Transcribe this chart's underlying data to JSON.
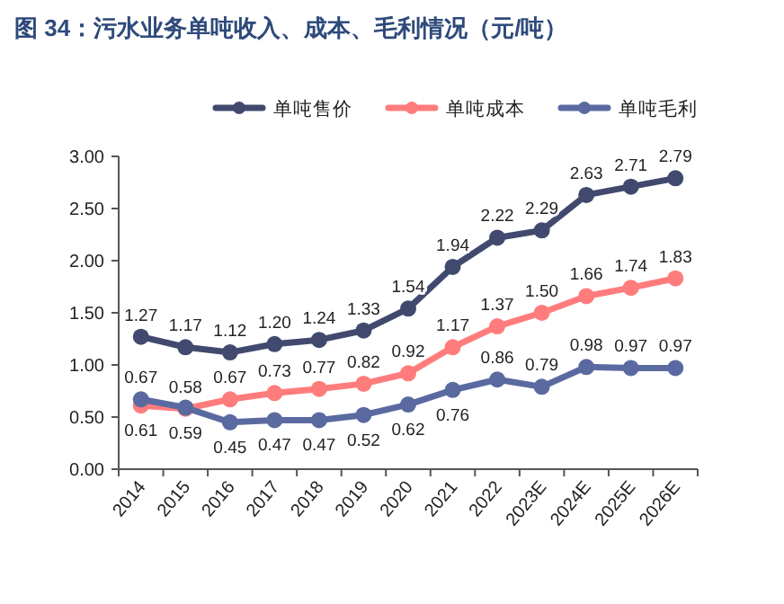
{
  "chart_data": {
    "type": "line",
    "title": "图 34：污水业务单吨收入、成本、毛利情况（元/吨）",
    "categories": [
      "2014",
      "2015",
      "2016",
      "2017",
      "2018",
      "2019",
      "2020",
      "2021",
      "2022",
      "2023E",
      "2024E",
      "2025E",
      "2026E"
    ],
    "series": [
      {
        "name": "单吨售价",
        "color": "#414a6e",
        "values": [
          1.27,
          1.17,
          1.12,
          1.2,
          1.24,
          1.33,
          1.54,
          1.94,
          2.22,
          2.29,
          2.63,
          2.71,
          2.79
        ],
        "value_labels": [
          "1.27",
          "1.17",
          "1.12",
          "1.20",
          "1.24",
          "1.33",
          "1.54",
          "1.94",
          "2.22",
          "2.29",
          "2.63",
          "2.71",
          "2.79"
        ]
      },
      {
        "name": "单吨成本",
        "color": "#ff7c7c",
        "values": [
          0.61,
          0.58,
          0.67,
          0.73,
          0.77,
          0.82,
          0.92,
          1.17,
          1.37,
          1.5,
          1.66,
          1.74,
          1.83
        ],
        "value_labels": [
          "0.61",
          "0.58",
          "0.67",
          "0.73",
          "0.77",
          "0.82",
          "0.92",
          "1.17",
          "1.37",
          "1.50",
          "1.66",
          "1.74",
          "1.83"
        ]
      },
      {
        "name": "单吨毛利",
        "color": "#5a6aa0",
        "values": [
          0.67,
          0.59,
          0.45,
          0.47,
          0.47,
          0.52,
          0.62,
          0.76,
          0.86,
          0.79,
          0.98,
          0.97,
          0.97
        ],
        "value_labels": [
          "0.67",
          "0.59",
          "0.45",
          "0.47",
          "0.47",
          "0.52",
          "0.62",
          "0.76",
          "0.86",
          "0.79",
          "0.98",
          "0.97",
          "0.97"
        ]
      }
    ],
    "ylim": [
      0,
      3
    ],
    "yticks": [
      {
        "value": 0,
        "label": "0.00"
      },
      {
        "value": 0.5,
        "label": "0.50"
      },
      {
        "value": 1,
        "label": "1.00"
      },
      {
        "value": 1.5,
        "label": "1.50"
      },
      {
        "value": 2,
        "label": "2.00"
      },
      {
        "value": 2.5,
        "label": "2.50"
      },
      {
        "value": 3,
        "label": "3.00"
      }
    ],
    "grid": false,
    "legend": "top",
    "marker": "circle",
    "line_style": "solid"
  }
}
